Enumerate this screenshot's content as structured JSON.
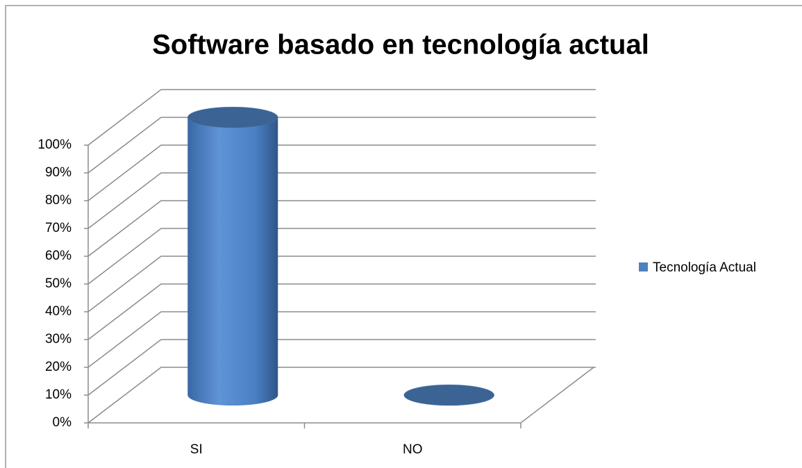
{
  "chart_data": {
    "type": "bar3d",
    "title": "Software basado en tecnología actual",
    "categories": [
      "SI",
      "NO"
    ],
    "series": [
      {
        "name": "Tecnología Actual",
        "color": "#4f81bd",
        "values": [
          100,
          0
        ]
      }
    ],
    "ylim": [
      0,
      100
    ],
    "yticks": [
      {
        "value": 0,
        "label": "0%"
      },
      {
        "value": 10,
        "label": "10%"
      },
      {
        "value": 20,
        "label": "20%"
      },
      {
        "value": 30,
        "label": "30%"
      },
      {
        "value": 40,
        "label": "40%"
      },
      {
        "value": 50,
        "label": "50%"
      },
      {
        "value": 60,
        "label": "60%"
      },
      {
        "value": 70,
        "label": "70%"
      },
      {
        "value": 80,
        "label": "80%"
      },
      {
        "value": 90,
        "label": "90%"
      },
      {
        "value": 100,
        "label": "100%"
      }
    ],
    "grid": true,
    "legend": "right"
  }
}
